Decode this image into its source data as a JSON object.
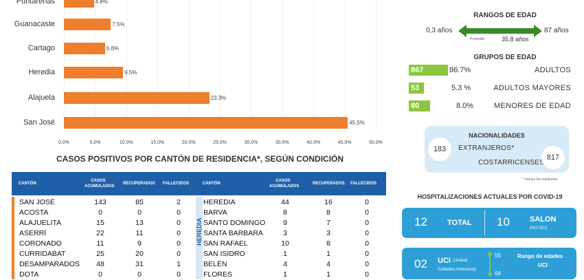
{
  "chart_data": {
    "type": "bar",
    "orientation": "horizontal",
    "categories": [
      "Puntarenas",
      "Guanacaste",
      "Cartago",
      "Heredia",
      "Alajuela",
      "San José"
    ],
    "values": [
      4.8,
      7.5,
      6.6,
      9.5,
      23.3,
      45.5
    ],
    "value_labels": [
      "4.8%",
      "7.5%",
      "6.6%",
      "9.5%",
      "23.3%",
      "45.5%"
    ],
    "xlim": [
      0,
      50
    ],
    "xticks": [
      "0.0%",
      "5.0%",
      "10.0%",
      "15.0%",
      "20.0%",
      "25.0%",
      "30.0%",
      "35.0%",
      "40.0%",
      "45.0%",
      "50.0%"
    ],
    "color": "#ee7f2d"
  },
  "table": {
    "title": "CASOS POSITIVOS POR CANTÓN DE RESIDENCIA*, SEGÚN CONDICIÓN",
    "headers": {
      "canton": "CANTÓN",
      "casos": "CASOS ACUMULADOS",
      "recuperados": "RECUPERADOS",
      "fallecidos": "FALLECIDOS"
    },
    "province_label": "HEREDIA",
    "left_rows": [
      [
        "SAN JOSÉ",
        "143",
        "85",
        "2"
      ],
      [
        "ACOSTA",
        "0",
        "0",
        "0"
      ],
      [
        "ALAJUELITA",
        "15",
        "13",
        "0"
      ],
      [
        "ASERRÍ",
        "22",
        "11",
        "0"
      ],
      [
        "CORONADO",
        "11",
        "9",
        "0"
      ],
      [
        "CURRIDABAT",
        "25",
        "20",
        "0"
      ],
      [
        "DESAMPARADOS",
        "48",
        "31",
        "1"
      ],
      [
        "DOTA",
        "0",
        "0",
        "0"
      ]
    ],
    "right_rows": [
      [
        "HEREDIA",
        "44",
        "16",
        "0"
      ],
      [
        "BARVA",
        "8",
        "8",
        "0"
      ],
      [
        "SANTO DOMINGO",
        "9",
        "7",
        "0"
      ],
      [
        "SANTA BARBARA",
        "3",
        "3",
        "0"
      ],
      [
        "SAN RAFAEL",
        "10",
        "8",
        "0"
      ],
      [
        "SAN ISIDRO",
        "1",
        "1",
        "0"
      ],
      [
        "BELÉN",
        "4",
        "4",
        "0"
      ],
      [
        "FLORES",
        "1",
        "1",
        "0"
      ]
    ]
  },
  "ages": {
    "title": "RANGOS DE EDAD",
    "min": "0,3 años",
    "max": "87 años",
    "mean_label": "Promedio",
    "mean": "35,8 años"
  },
  "groups": {
    "title": "GRUPOS DE EDAD",
    "items": [
      {
        "count": "867",
        "pct": "86.7%",
        "name": "ADULTOS",
        "fill": 0.867
      },
      {
        "count": "53",
        "pct": "5.3 %",
        "name": "ADULTOS MAYORES",
        "fill": 0.053
      },
      {
        "count": "80",
        "pct": "8.0%",
        "name": "MENORES DE EDAD",
        "fill": 0.08
      }
    ]
  },
  "nationalities": {
    "title": "NACIONALIDADES",
    "foreign_count": "183",
    "foreign_label": "EXTRANJEROS*",
    "local_label": "COSTARRICENSES",
    "local_count": "817",
    "note": "* Incluye los residentes"
  },
  "hospital": {
    "title": "HOSPITALIZACIONES ACTUALES POR COVID-19",
    "total_num": "12",
    "total_label": "TOTAL",
    "salon_num": "10",
    "salon_label": "SALON",
    "salon_sub": "(NO UCI)",
    "uci_num": "02",
    "uci_label": "UCI",
    "uci_paren": "(Unidad",
    "uci_sub": "Cuidados Intensivos)",
    "range_top": "55",
    "range_bottom": "64",
    "range_title": "Rango de edades",
    "range_sub": "UCI"
  }
}
